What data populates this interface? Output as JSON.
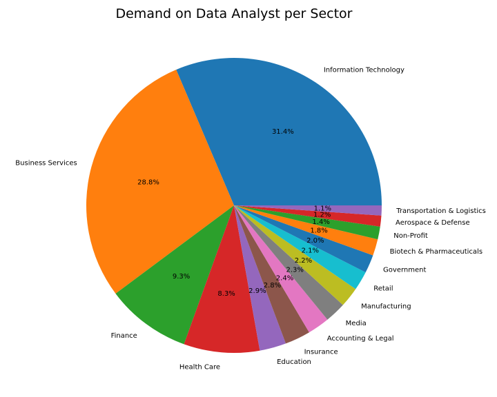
{
  "chart_data": {
    "type": "pie",
    "title": "Demand on Data Analyst per Sector",
    "start_angle_deg": 0,
    "direction": "counterclockwise",
    "slices": [
      {
        "label": "Information Technology",
        "value": 31.4,
        "pct_label": "31.4%",
        "color": "#1f77b4"
      },
      {
        "label": "Business Services",
        "value": 28.8,
        "pct_label": "28.8%",
        "color": "#ff7f0e"
      },
      {
        "label": "Finance",
        "value": 9.3,
        "pct_label": "9.3%",
        "color": "#2ca02c"
      },
      {
        "label": "Health Care",
        "value": 8.3,
        "pct_label": "8.3%",
        "color": "#d62728"
      },
      {
        "label": "Education",
        "value": 2.9,
        "pct_label": "2.9%",
        "color": "#9467bd"
      },
      {
        "label": "Insurance",
        "value": 2.8,
        "pct_label": "2.8%",
        "color": "#8c564b"
      },
      {
        "label": "Accounting & Legal",
        "value": 2.4,
        "pct_label": "2.4%",
        "color": "#e377c2"
      },
      {
        "label": "Media",
        "value": 2.3,
        "pct_label": "2.3%",
        "color": "#7f7f7f"
      },
      {
        "label": "Manufacturing",
        "value": 2.2,
        "pct_label": "2.2%",
        "color": "#bcbd22"
      },
      {
        "label": "Retail",
        "value": 2.1,
        "pct_label": "2.1%",
        "color": "#17becf"
      },
      {
        "label": "Government",
        "value": 2.0,
        "pct_label": "2.0%",
        "color": "#1f77b4"
      },
      {
        "label": "Biotech & Pharmaceuticals",
        "value": 1.8,
        "pct_label": "1.8%",
        "color": "#ff7f0e"
      },
      {
        "label": "Non-Profit",
        "value": 1.4,
        "pct_label": "1.4%",
        "color": "#2ca02c"
      },
      {
        "label": "Aerospace & Defense",
        "value": 1.2,
        "pct_label": "1.2%",
        "color": "#d62728"
      },
      {
        "label": "Transportation & Logistics",
        "value": 1.1,
        "pct_label": "1.1%",
        "color": "#9467bd"
      }
    ]
  }
}
